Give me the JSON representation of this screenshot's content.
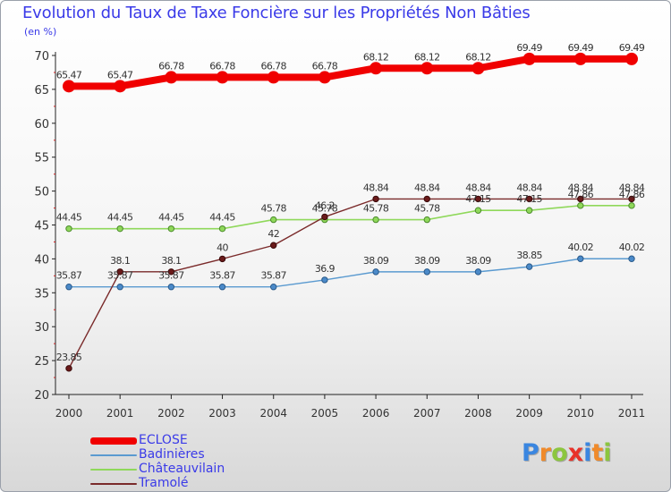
{
  "header": {
    "title": "Evolution du Taux de Taxe Foncière sur les Propriétés Non Bâties",
    "subtitle": "(en %)"
  },
  "logo": {
    "text": "Proxiti",
    "letters": [
      {
        "ch": "P",
        "color": "#3a86e0"
      },
      {
        "ch": "r",
        "color": "#f08a2a"
      },
      {
        "ch": "o",
        "color": "#8cc63f"
      },
      {
        "ch": "x",
        "color": "#e8332a"
      },
      {
        "ch": "i",
        "color": "#3a86e0"
      },
      {
        "ch": "t",
        "color": "#f08a2a"
      },
      {
        "ch": "i",
        "color": "#8cc63f"
      }
    ]
  },
  "chart_data": {
    "type": "line",
    "x": [
      "2000",
      "2001",
      "2002",
      "2003",
      "2004",
      "2005",
      "2006",
      "2007",
      "2008",
      "2009",
      "2010",
      "2011"
    ],
    "ylim": [
      20,
      70
    ],
    "yticks": [
      20,
      25,
      30,
      35,
      40,
      45,
      50,
      55,
      60,
      65,
      70
    ],
    "grid": false,
    "legend_position": "bottom-left",
    "series": [
      {
        "name": "ECLOSE",
        "color": "#f00000",
        "values": [
          65.47,
          65.47,
          66.78,
          66.78,
          66.78,
          66.78,
          68.12,
          68.12,
          68.12,
          69.49,
          69.49,
          69.49
        ],
        "labels": [
          "65.47",
          "65.47",
          "66.78",
          "66.78",
          "66.78",
          "66.78",
          "68.12",
          "68.12",
          "68.12",
          "69.49",
          "69.49",
          "69.49"
        ]
      },
      {
        "name": "Badinières",
        "color": "#5a9ad0",
        "values": [
          35.87,
          35.87,
          35.87,
          35.87,
          35.87,
          36.9,
          38.09,
          38.09,
          38.09,
          38.85,
          40.02,
          40.02
        ],
        "labels": [
          "35.87",
          "35.87",
          "35.87",
          "35.87",
          "35.87",
          "36.9",
          "38.09",
          "38.09",
          "38.09",
          "38.85",
          "40.02",
          "40.02"
        ]
      },
      {
        "name": "Châteauvilain",
        "color": "#8fd85a",
        "values": [
          44.45,
          44.45,
          44.45,
          44.45,
          45.78,
          45.78,
          45.78,
          45.78,
          47.15,
          47.15,
          47.86,
          47.86
        ],
        "labels": [
          "44.45",
          "44.45",
          "44.45",
          "44.45",
          "45.78",
          "45.78",
          "45.78",
          "45.78",
          "47.15",
          "47.15",
          "47.86",
          "47.86"
        ]
      },
      {
        "name": "Tramolé",
        "color": "#7a2a2a",
        "values": [
          23.85,
          38.1,
          38.1,
          40,
          42,
          46.2,
          48.84,
          48.84,
          48.84,
          48.84,
          48.84,
          48.84
        ],
        "labels": [
          "23.85",
          "38.1",
          "38.1",
          "40",
          "42",
          "46.2",
          "48.84",
          "48.84",
          "48.84",
          "48.84",
          "48.84",
          "48.84"
        ]
      }
    ]
  }
}
